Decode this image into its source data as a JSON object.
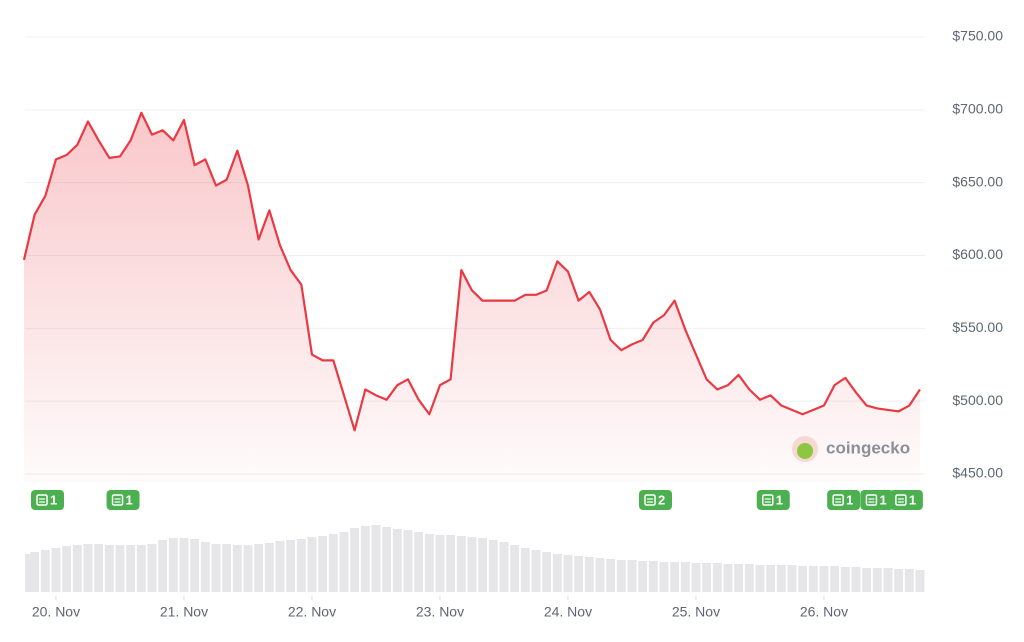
{
  "chart_data": {
    "type": "line",
    "x": [
      19.75,
      19.833,
      19.917,
      20,
      20.083,
      20.167,
      20.25,
      20.333,
      20.417,
      20.5,
      20.583,
      20.667,
      20.75,
      20.833,
      20.917,
      21,
      21.083,
      21.167,
      21.25,
      21.333,
      21.417,
      21.5,
      21.583,
      21.667,
      21.75,
      21.833,
      21.917,
      22,
      22.083,
      22.167,
      22.25,
      22.333,
      22.417,
      22.5,
      22.583,
      22.667,
      22.75,
      22.833,
      22.917,
      23,
      23.083,
      23.167,
      23.25,
      23.333,
      23.417,
      23.5,
      23.583,
      23.667,
      23.75,
      23.833,
      23.917,
      24,
      24.083,
      24.167,
      24.25,
      24.333,
      24.417,
      24.5,
      24.583,
      24.667,
      24.75,
      24.833,
      24.917,
      25,
      25.083,
      25.167,
      25.25,
      25.333,
      25.417,
      25.5,
      25.583,
      25.667,
      25.75,
      25.833,
      25.917,
      26,
      26.083,
      26.167,
      26.25,
      26.333,
      26.417,
      26.5,
      26.583,
      26.667,
      26.75
    ],
    "values": [
      597,
      628,
      641,
      666,
      669,
      676,
      692,
      679,
      667,
      668,
      679,
      698,
      683,
      686,
      679,
      693,
      662,
      666,
      648,
      652,
      672,
      648,
      611,
      631,
      607,
      590,
      580,
      532,
      528,
      528,
      504,
      480,
      508,
      504,
      501,
      511,
      515,
      501,
      491,
      511,
      515,
      590,
      576,
      569,
      569,
      569,
      569,
      573,
      573,
      576,
      596,
      589,
      569,
      575,
      563,
      542,
      535,
      539,
      542,
      554,
      559,
      569,
      549,
      532,
      515,
      508,
      511,
      518,
      508,
      501,
      504,
      497,
      494,
      491,
      494,
      497,
      511,
      516,
      506,
      497,
      495,
      494,
      493,
      497,
      508
    ],
    "color": "#ea3943",
    "volume": {
      "color": "#e6e6e8",
      "ylim": [
        0,
        80
      ],
      "values": [
        38,
        40,
        42,
        44,
        46,
        47,
        48,
        48,
        47,
        47,
        47,
        47,
        48,
        52,
        54,
        54,
        53,
        50,
        48,
        48,
        47,
        47,
        48,
        49,
        51,
        52,
        53,
        55,
        56,
        58,
        60,
        64,
        66,
        67,
        65,
        63,
        62,
        60,
        58,
        57,
        57,
        56,
        55,
        54,
        52,
        50,
        47,
        44,
        42,
        40,
        38,
        37,
        36,
        35,
        34,
        33,
        32,
        32,
        31,
        31,
        30,
        30,
        30,
        29,
        29,
        29,
        28,
        28,
        28,
        27,
        27,
        27,
        27,
        26,
        26,
        26,
        26,
        25,
        25,
        24,
        24,
        24,
        23,
        23,
        22
      ]
    },
    "xlim": [
      19.74,
      26.78
    ],
    "xticks": [
      {
        "value": 20,
        "label": "20. Nov"
      },
      {
        "value": 21,
        "label": "21. Nov"
      },
      {
        "value": 22,
        "label": "22. Nov"
      },
      {
        "value": 23,
        "label": "23. Nov"
      },
      {
        "value": 24,
        "label": "24. Nov"
      },
      {
        "value": 25,
        "label": "25. Nov"
      },
      {
        "value": 26,
        "label": "26. Nov"
      }
    ],
    "ylim": [
      450,
      750
    ],
    "yticks": [
      {
        "value": 450,
        "label": "$450.00"
      },
      {
        "value": 500,
        "label": "$500.00"
      },
      {
        "value": 550,
        "label": "$550.00"
      },
      {
        "value": 600,
        "label": "$600.00"
      },
      {
        "value": 650,
        "label": "$650.00"
      },
      {
        "value": 700,
        "label": "$700.00"
      },
      {
        "value": 750,
        "label": "$750.00"
      }
    ],
    "grid": true,
    "events": [
      {
        "x": 19.93,
        "count": 1
      },
      {
        "x": 20.52,
        "count": 1
      },
      {
        "x": 24.68,
        "count": 2
      },
      {
        "x": 25.6,
        "count": 1
      },
      {
        "x": 26.15,
        "count": 1
      },
      {
        "x": 26.41,
        "count": 1
      },
      {
        "x": 26.64,
        "count": 1
      }
    ],
    "event_color": "#4caf50",
    "watermark": "coingecko"
  }
}
